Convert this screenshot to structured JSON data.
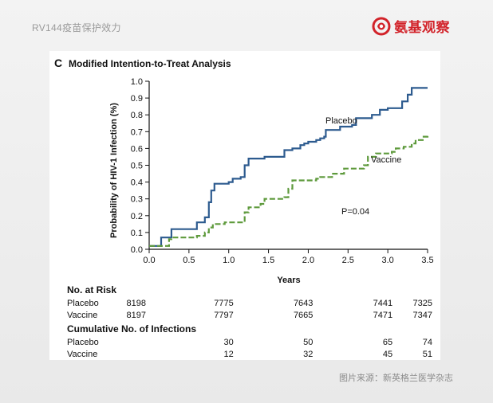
{
  "header": {
    "title": "RV144疫苗保护效力",
    "brand_name": "氨基观察"
  },
  "footer": {
    "credit": "图片来源：新英格兰医学杂志"
  },
  "colors": {
    "placebo": "#2d5b8f",
    "vaccine": "#5e9a3c",
    "brand": "#d2232a"
  },
  "chart_data": {
    "type": "line",
    "panel_label": "C",
    "title": "Modified Intention-to-Treat Analysis",
    "xlabel": "Years",
    "ylabel": "Probability of HIV-1 Infection (%)",
    "xlim": [
      0,
      3.5
    ],
    "ylim": [
      0,
      1.0
    ],
    "x_ticks": [
      "0.0",
      "0.5",
      "1.0",
      "1.5",
      "2.0",
      "2.5",
      "3.0",
      "3.5"
    ],
    "y_ticks": [
      "0.0",
      "0.1",
      "0.2",
      "0.3",
      "0.4",
      "0.5",
      "0.6",
      "0.7",
      "0.8",
      "0.9",
      "1.0"
    ],
    "annotation": "P=0.04",
    "series": [
      {
        "name": "Placebo",
        "style": "solid",
        "x": [
          0,
          0.12,
          0.15,
          0.25,
          0.28,
          0.5,
          0.6,
          0.7,
          0.75,
          0.78,
          0.82,
          1.0,
          1.05,
          1.15,
          1.2,
          1.25,
          1.3,
          1.45,
          1.55,
          1.7,
          1.8,
          1.9,
          1.95,
          2.0,
          2.1,
          2.15,
          2.2,
          2.22,
          2.4,
          2.55,
          2.6,
          2.8,
          2.9,
          3.0,
          3.15,
          3.18,
          3.25,
          3.3,
          3.5
        ],
        "y": [
          0.02,
          0.02,
          0.07,
          0.07,
          0.12,
          0.12,
          0.16,
          0.19,
          0.28,
          0.35,
          0.39,
          0.4,
          0.42,
          0.43,
          0.5,
          0.54,
          0.54,
          0.55,
          0.55,
          0.59,
          0.6,
          0.62,
          0.63,
          0.64,
          0.65,
          0.66,
          0.67,
          0.71,
          0.73,
          0.74,
          0.78,
          0.8,
          0.83,
          0.84,
          0.84,
          0.88,
          0.92,
          0.96,
          0.96
        ]
      },
      {
        "name": "Vaccine",
        "style": "dashed",
        "x": [
          0,
          0.15,
          0.25,
          0.28,
          0.55,
          0.6,
          0.7,
          0.75,
          0.8,
          0.95,
          1.15,
          1.2,
          1.25,
          1.4,
          1.45,
          1.7,
          1.75,
          1.8,
          2.1,
          2.15,
          2.3,
          2.45,
          2.55,
          2.7,
          2.75,
          2.85,
          3.05,
          3.1,
          3.2,
          3.3,
          3.35,
          3.45,
          3.5
        ],
        "y": [
          0.02,
          0.02,
          0.06,
          0.07,
          0.07,
          0.08,
          0.1,
          0.13,
          0.15,
          0.16,
          0.16,
          0.22,
          0.25,
          0.27,
          0.3,
          0.31,
          0.36,
          0.41,
          0.42,
          0.43,
          0.45,
          0.48,
          0.48,
          0.5,
          0.55,
          0.57,
          0.58,
          0.6,
          0.61,
          0.63,
          0.65,
          0.67,
          0.68
        ]
      }
    ],
    "risk_table": {
      "header": "No. at Risk",
      "columns_x": [
        0,
        1.0,
        2.0,
        3.0,
        3.5
      ],
      "rows": [
        {
          "label": "Placebo",
          "values": [
            "8198",
            "7775",
            "7643",
            "7441",
            "7325"
          ]
        },
        {
          "label": "Vaccine",
          "values": [
            "8197",
            "7797",
            "7665",
            "7471",
            "7347"
          ]
        }
      ]
    },
    "infections_table": {
      "header": "Cumulative No. of Infections",
      "columns_x": [
        1.0,
        2.0,
        3.0,
        3.5
      ],
      "rows": [
        {
          "label": "Placebo",
          "values": [
            "30",
            "50",
            "65",
            "74"
          ]
        },
        {
          "label": "Vaccine",
          "values": [
            "12",
            "32",
            "45",
            "51"
          ]
        }
      ]
    }
  }
}
